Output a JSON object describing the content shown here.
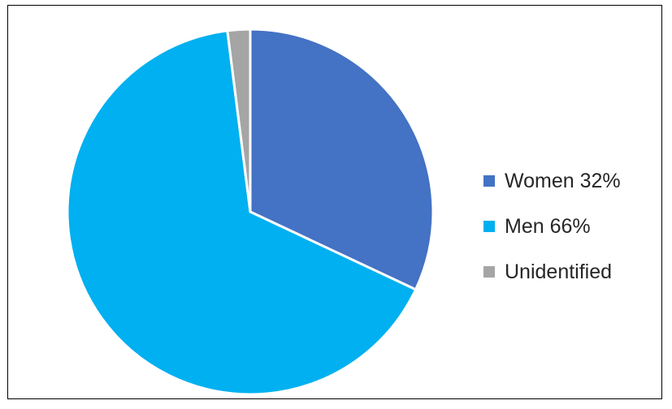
{
  "chart_data": {
    "type": "pie",
    "title": "",
    "start_angle_deg": 0,
    "direction": "clockwise",
    "slice_border_color": "#ffffff",
    "legend_position": "right",
    "slices": [
      {
        "label": "Women 32%",
        "value": 32,
        "color": "#4472C4"
      },
      {
        "label": "Men 66%",
        "value": 66,
        "color": "#00B0F0"
      },
      {
        "label": "Unidentified",
        "value": 2,
        "color": "#A5A5A5"
      }
    ]
  }
}
